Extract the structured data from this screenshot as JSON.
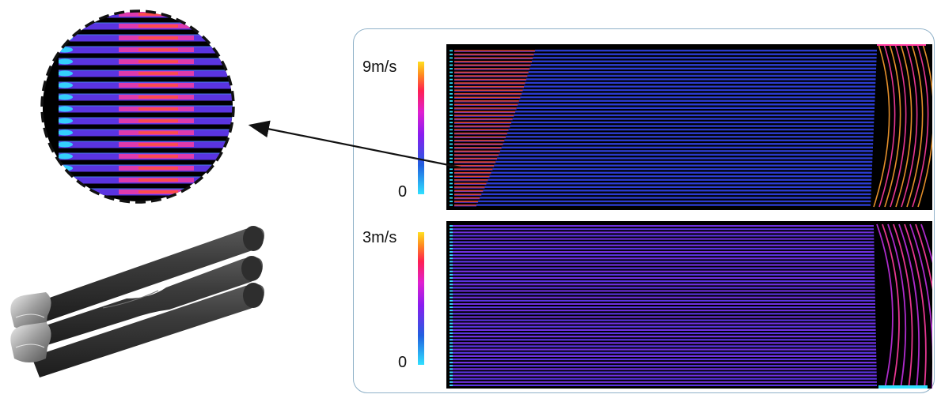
{
  "colorbars": [
    {
      "max_label": "9m/s",
      "min_label": "0"
    },
    {
      "max_label": "3m/s",
      "min_label": "0"
    }
  ],
  "colors": {
    "bar_bottom": "#30e0ff",
    "bar_low": "#2060e0",
    "bar_mid": "#d020e0",
    "bar_high": "#ff2060",
    "bar_top": "#ffe020",
    "flow_blue": "#2c3cd8",
    "flow_violet": "#5a34e0",
    "flow_pink": "#ff3ca0",
    "flow_red": "#ff5040",
    "background": "#000000",
    "frame": "#8fb1c8",
    "tube_dark": "#3a3a3a"
  }
}
